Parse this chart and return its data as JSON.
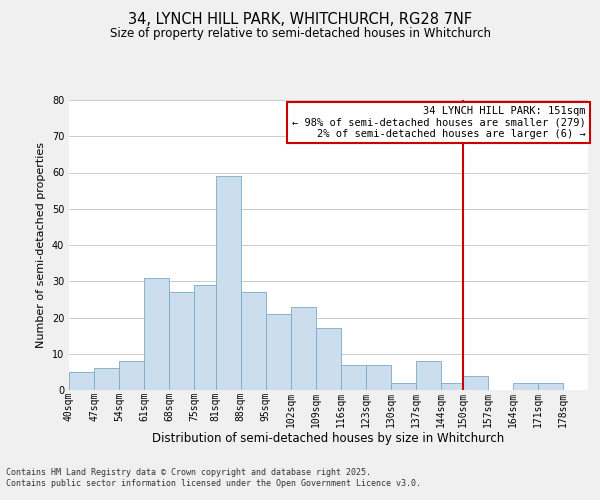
{
  "title": "34, LYNCH HILL PARK, WHITCHURCH, RG28 7NF",
  "subtitle": "Size of property relative to semi-detached houses in Whitchurch",
  "xlabel": "Distribution of semi-detached houses by size in Whitchurch",
  "ylabel": "Number of semi-detached properties",
  "bin_labels": [
    "40sqm",
    "47sqm",
    "54sqm",
    "61sqm",
    "68sqm",
    "75sqm",
    "81sqm",
    "88sqm",
    "95sqm",
    "102sqm",
    "109sqm",
    "116sqm",
    "123sqm",
    "130sqm",
    "137sqm",
    "144sqm",
    "150sqm",
    "157sqm",
    "164sqm",
    "171sqm",
    "178sqm"
  ],
  "bin_edges": [
    40,
    47,
    54,
    61,
    68,
    75,
    81,
    88,
    95,
    102,
    109,
    116,
    123,
    130,
    137,
    144,
    150,
    157,
    164,
    171,
    178,
    185
  ],
  "counts": [
    5,
    6,
    8,
    31,
    27,
    29,
    59,
    27,
    21,
    23,
    17,
    7,
    7,
    2,
    8,
    2,
    4,
    0,
    2,
    2,
    0
  ],
  "bar_color": "#ccdded",
  "bar_edge_color": "#7aaac8",
  "grid_color": "#cccccc",
  "vline_x": 150,
  "vline_color": "#cc0000",
  "annotation_title": "34 LYNCH HILL PARK: 151sqm",
  "annotation_line1": "← 98% of semi-detached houses are smaller (279)",
  "annotation_line2": "2% of semi-detached houses are larger (6) →",
  "footnote1": "Contains HM Land Registry data © Crown copyright and database right 2025.",
  "footnote2": "Contains public sector information licensed under the Open Government Licence v3.0.",
  "ylim": [
    0,
    80
  ],
  "yticks": [
    0,
    10,
    20,
    30,
    40,
    50,
    60,
    70,
    80
  ],
  "background_color": "#f0f0f0",
  "plot_bg_color": "#ffffff",
  "title_fontsize": 10.5,
  "subtitle_fontsize": 8.5,
  "xlabel_fontsize": 8.5,
  "ylabel_fontsize": 8,
  "tick_fontsize": 7,
  "footnote_fontsize": 6,
  "annotation_fontsize": 7.5
}
